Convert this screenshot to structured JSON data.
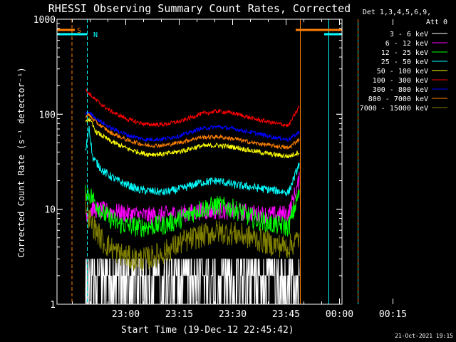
{
  "chart_data": {
    "type": "line",
    "title": "RHESSI Observing Summary Count Rates, Corrected",
    "ylabel": "Corrected Count Rate (s⁻¹ detector⁻¹)",
    "xlabel": "Start Time (19-Dec-12 22:45:42)",
    "yscale": "log",
    "ylim": [
      1,
      1000
    ],
    "xlim_minutes": [
      -5,
      75
    ],
    "x_ticks": [
      "23:00",
      "23:15",
      "23:30",
      "23:45",
      "00:00",
      "00:15"
    ],
    "y_ticks": [
      "1",
      "10",
      "100",
      "1000"
    ],
    "detector_label": "Det 1,3,4,5,6,9,",
    "attenuator_label": "Att 0",
    "flags": [
      {
        "label": "S",
        "color": "#ff8000",
        "segments": [
          [
            -5,
            0
          ],
          [
            62,
            75
          ]
        ]
      },
      {
        "label": "N",
        "color": "#00ffff",
        "segments": [
          [
            -5,
            3.5
          ],
          [
            70,
            75
          ]
        ]
      }
    ],
    "markers": [
      {
        "minute": -5.0,
        "color": "#00ffff",
        "style": "solid"
      },
      {
        "minute": -0.8,
        "color": "#ff8000",
        "style": "dashed"
      },
      {
        "minute": 3.5,
        "color": "#00ffff",
        "style": "dashed"
      },
      {
        "minute": 63.3,
        "color": "#ff8000",
        "style": "solid"
      },
      {
        "minute": 71.3,
        "color": "#00ffff",
        "style": "solid"
      },
      {
        "minute": 79.5,
        "color": "#00ffff",
        "style": "solid"
      },
      {
        "minute": 79.5,
        "color": "#ff8000",
        "style": "dashed"
      }
    ],
    "series": [
      {
        "name": "3 - 6 keV",
        "color": "#ffffff",
        "x": [
          3,
          10,
          20,
          30,
          40,
          50,
          60,
          63
        ],
        "y": [
          2,
          1.7,
          1.5,
          1.6,
          1.7,
          1.6,
          1.5,
          1.6
        ]
      },
      {
        "name": "6 - 12 keV",
        "color": "#ff00ff",
        "x": [
          3,
          5,
          10,
          15,
          20,
          25,
          30,
          35,
          40,
          45,
          50,
          55,
          60,
          63
        ],
        "y": [
          9,
          10,
          9.5,
          9,
          8.5,
          8.8,
          9,
          9.5,
          9.7,
          9.5,
          9,
          8.7,
          9,
          20
        ]
      },
      {
        "name": "12 - 25 keV",
        "color": "#00ff00",
        "x": [
          3,
          5,
          8,
          12,
          18,
          25,
          30,
          35,
          40,
          45,
          50,
          55,
          60,
          63
        ],
        "y": [
          16,
          13,
          9,
          7,
          6.5,
          6.8,
          8,
          10,
          11,
          10,
          8,
          7,
          6.5,
          15
        ]
      },
      {
        "name": "25 - 50 keV",
        "color": "#00ffff",
        "x": [
          3,
          4,
          5,
          8,
          12,
          18,
          25,
          30,
          35,
          40,
          45,
          50,
          55,
          60,
          63
        ],
        "y": [
          40,
          75,
          35,
          25,
          20,
          16,
          15,
          16.5,
          19,
          20,
          18,
          17,
          16,
          15,
          30
        ]
      },
      {
        "name": "50 - 100 keV",
        "color": "#ffff00",
        "x": [
          3,
          4,
          6,
          10,
          15,
          20,
          25,
          30,
          35,
          40,
          45,
          50,
          55,
          60,
          63
        ],
        "y": [
          80,
          90,
          65,
          52,
          43,
          38,
          38,
          41,
          46,
          47,
          45,
          41,
          38,
          36,
          40
        ]
      },
      {
        "name": "100 - 300 keV",
        "color": "#ff0000",
        "x": [
          3,
          4,
          6,
          10,
          15,
          20,
          25,
          30,
          35,
          40,
          45,
          50,
          55,
          60,
          63
        ],
        "y": [
          180,
          165,
          140,
          108,
          88,
          78,
          78,
          85,
          100,
          108,
          102,
          90,
          82,
          76,
          120
        ]
      },
      {
        "name": "300 - 800 keV",
        "color": "#0000ff",
        "x": [
          3,
          4,
          6,
          10,
          15,
          20,
          25,
          30,
          35,
          40,
          45,
          50,
          55,
          60,
          63
        ],
        "y": [
          100,
          105,
          90,
          72,
          60,
          54,
          55,
          60,
          70,
          74,
          70,
          64,
          58,
          54,
          65
        ]
      },
      {
        "name": "800 - 7000 keV",
        "color": "#ff8000",
        "x": [
          3,
          4,
          6,
          10,
          15,
          20,
          25,
          30,
          35,
          40,
          45,
          50,
          55,
          60,
          63
        ],
        "y": [
          95,
          98,
          82,
          64,
          53,
          47,
          47,
          51,
          57,
          58,
          55,
          50,
          47,
          44,
          55
        ]
      },
      {
        "name": "7000 - 15000 keV",
        "color": "#808000",
        "x": [
          3,
          4,
          6,
          8,
          12,
          16,
          20,
          25,
          30,
          35,
          40,
          45,
          50,
          55,
          60,
          63
        ],
        "y": [
          12,
          8,
          6,
          4.5,
          3.5,
          3,
          3,
          3.5,
          4.5,
          5.2,
          5.8,
          5.5,
          5,
          4.3,
          4,
          5
        ]
      }
    ]
  },
  "footer": {
    "timestamp": "21-Oct-2021 19:15"
  }
}
